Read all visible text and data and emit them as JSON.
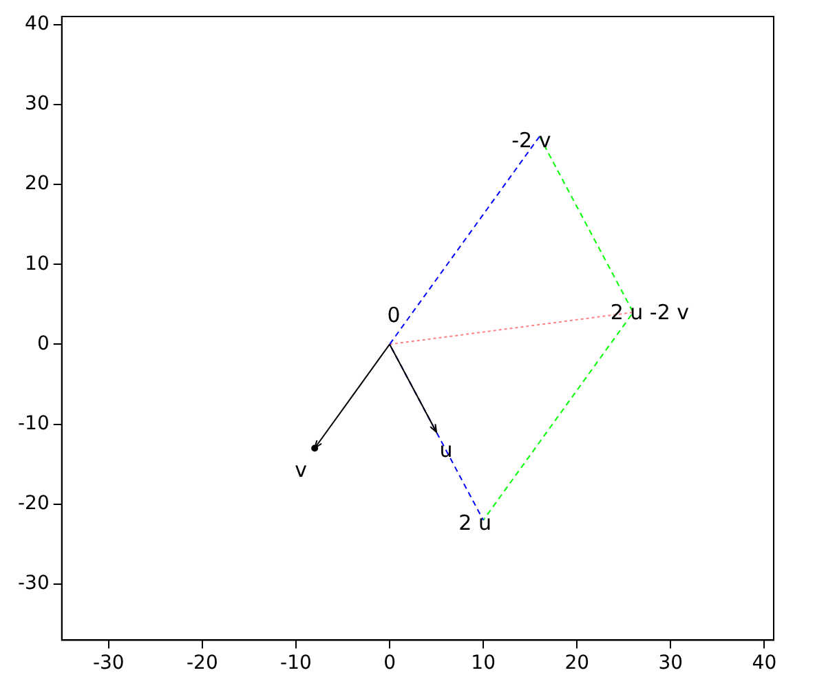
{
  "chart_data": {
    "type": "line",
    "xlim": [
      -35,
      41
    ],
    "ylim": [
      -37,
      41
    ],
    "xticks": [
      -30,
      -20,
      -10,
      0,
      10,
      20,
      30,
      40
    ],
    "yticks": [
      -30,
      -20,
      -10,
      0,
      10,
      20,
      30,
      40
    ],
    "grid": false,
    "legend": false,
    "series": [
      {
        "x": [
          16,
          0,
          10
        ],
        "values": [
          26,
          0,
          -22
        ],
        "color": "#0000ff",
        "line_style": "dashed",
        "marker": "none"
      },
      {
        "x": [
          16,
          26,
          10
        ],
        "values": [
          26,
          4,
          -22
        ],
        "color": "#00ff00",
        "line_style": "dashed",
        "marker": "none"
      },
      {
        "x": [
          0,
          26
        ],
        "values": [
          0,
          4
        ],
        "color": "#ff8080",
        "line_style": "dotted",
        "marker": "none"
      },
      {
        "type": "scatter",
        "x": [
          -8
        ],
        "values": [
          -13
        ],
        "color": "#000000",
        "marker": "circle"
      }
    ],
    "annotations": [
      {
        "text": "0",
        "x": 0,
        "y": 0
      },
      {
        "text": "u",
        "x": 5,
        "y": -11
      },
      {
        "text": "v",
        "x": -8,
        "y": -13
      },
      {
        "text": "2 u",
        "x": 10,
        "y": -22
      },
      {
        "text": "-2 v",
        "x": 16,
        "y": 26
      },
      {
        "text": "2 u -2 v",
        "x": 26,
        "y": 4
      }
    ]
  }
}
